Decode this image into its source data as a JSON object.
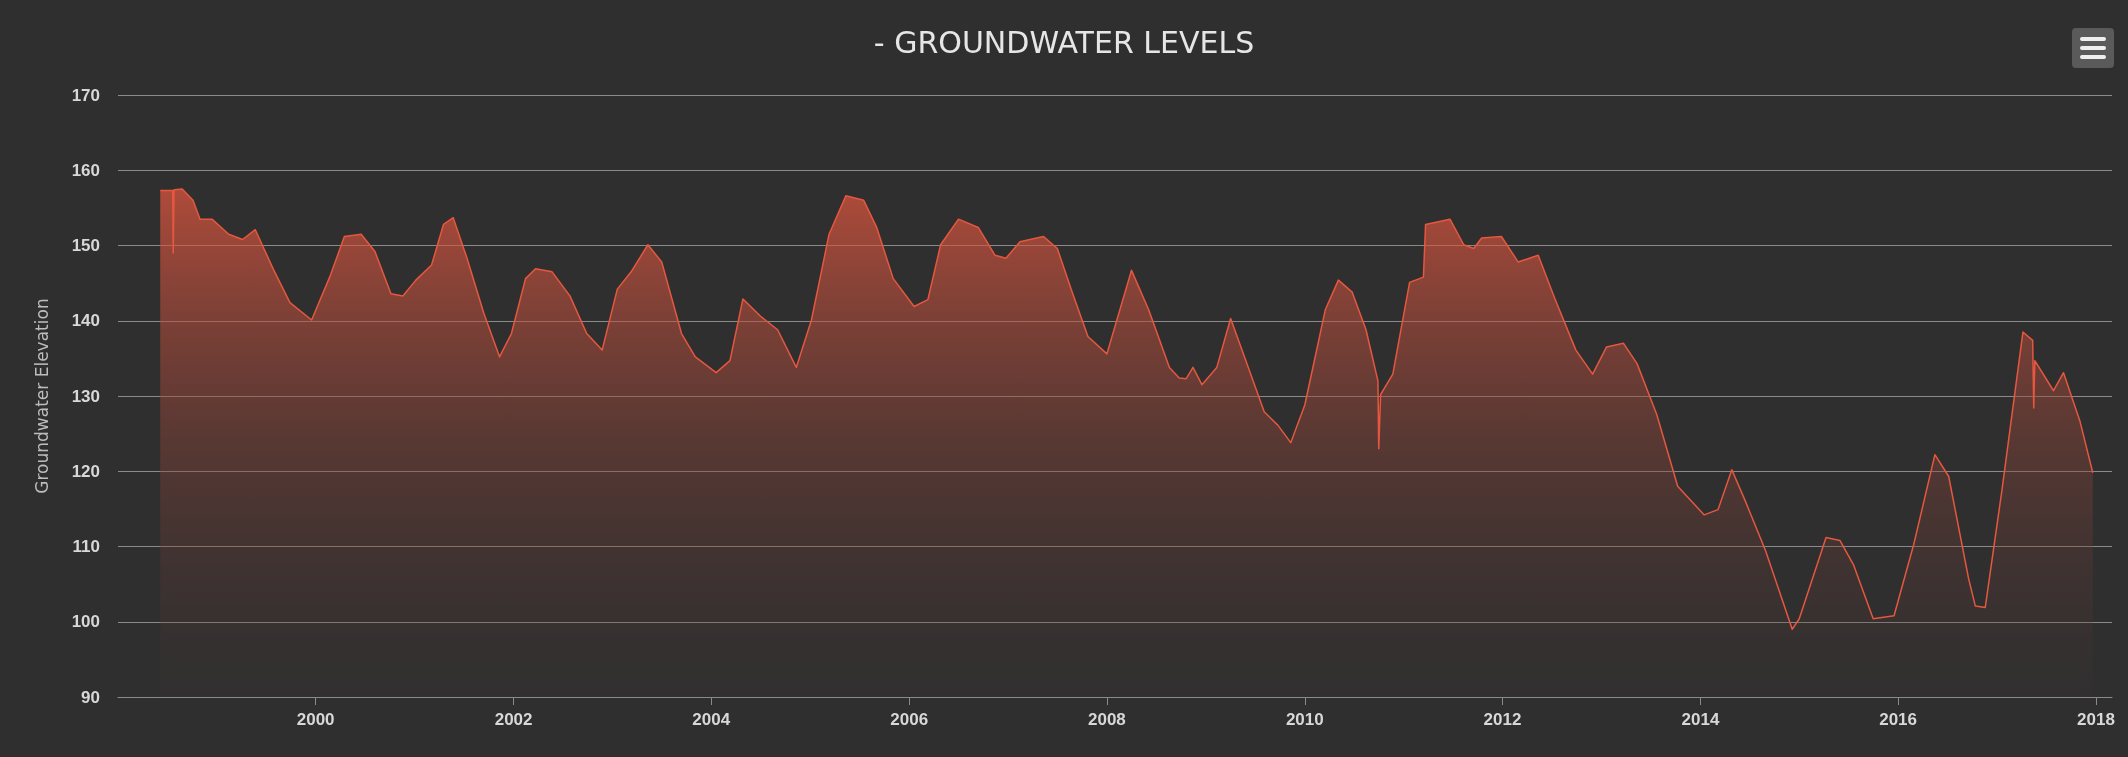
{
  "chart_data": {
    "type": "area",
    "title": "- GROUNDWATER LEVELS",
    "ylabel": "Groundwater Elevation",
    "x": [
      "1998-06-06",
      "1998-07-13",
      "1998-07-22",
      "1998-07-24",
      "1998-07-27",
      "1998-08-26",
      "1998-10-05",
      "1998-10-31",
      "1998-12-14",
      "1999-02-14",
      "1999-04-06",
      "1999-05-23",
      "1999-07-28",
      "1999-09-28",
      "1999-12-17",
      "2000-02-24",
      "2000-04-16",
      "2000-06-17",
      "2000-08-07",
      "2000-10-05",
      "2000-11-18",
      "2001-01-05",
      "2001-03-04",
      "2001-04-17",
      "2001-05-23",
      "2001-07-13",
      "2001-09-13",
      "2001-11-10",
      "2001-12-24",
      "2002-02-14",
      "2002-03-23",
      "2002-05-23",
      "2002-07-28",
      "2002-09-28",
      "2002-11-24",
      "2003-01-19",
      "2003-03-11",
      "2003-05-12",
      "2003-07-02",
      "2003-09-13",
      "2003-11-03",
      "2004-01-19",
      "2004-03-10",
      "2004-04-27",
      "2004-07-01",
      "2004-09-02",
      "2004-11-10",
      "2005-01-05",
      "2005-03-11",
      "2005-05-12",
      "2005-07-17",
      "2005-09-03",
      "2005-11-03",
      "2006-01-19",
      "2006-03-11",
      "2006-04-27",
      "2006-07-02",
      "2006-09-13",
      "2006-11-14",
      "2006-12-24",
      "2007-02-14",
      "2007-05-12",
      "2007-07-02",
      "2007-08-26",
      "2007-10-23",
      "2008-01-01",
      "2008-04-01",
      "2008-06-03",
      "2008-08-19",
      "2008-09-24",
      "2008-10-20",
      "2008-11-14",
      "2008-12-17",
      "2009-02-10",
      "2009-04-02",
      "2009-05-19",
      "2009-08-04",
      "2009-09-24",
      "2009-11-10",
      "2010-01-01",
      "2010-03-18",
      "2010-05-05",
      "2010-06-25",
      "2010-08-15",
      "2010-09-28",
      "2010-10-01",
      "2010-10-08",
      "2010-11-22",
      "2011-01-23",
      "2011-03-15",
      "2011-03-23",
      "2011-06-21",
      "2011-08-11",
      "2011-09-17",
      "2011-10-16",
      "2011-12-28",
      "2012-02-28",
      "2012-05-12",
      "2012-07-13",
      "2012-09-28",
      "2012-11-29",
      "2013-01-19",
      "2013-03-23",
      "2013-05-12",
      "2013-07-24",
      "2013-10-09",
      "2013-11-24",
      "2014-01-15",
      "2014-03-07",
      "2014-04-27",
      "2014-06-14",
      "2014-08-30",
      "2014-12-06",
      "2015-01-01",
      "2015-04-10",
      "2015-05-31",
      "2015-07-20",
      "2015-10-01",
      "2015-12-17",
      "2016-02-28",
      "2016-05-16",
      "2016-07-06",
      "2016-09-17",
      "2016-10-12",
      "2016-11-18",
      "2017-01-19",
      "2017-04-06",
      "2017-05-12",
      "2017-05-16",
      "2017-05-20",
      "2017-07-28",
      "2017-09-03",
      "2017-11-03",
      "2017-12-20"
    ],
    "series": [
      {
        "color": "#e5573f",
        "values": [
          157.3,
          157.3,
          157.3,
          149,
          157.4,
          157.5,
          156,
          153.5,
          153.5,
          151.5,
          150.8,
          152.1,
          146.9,
          142.4,
          140.1,
          146,
          151.2,
          151.5,
          149.2,
          143.6,
          143.3,
          145.4,
          147.4,
          152.8,
          153.7,
          148.3,
          141,
          135.2,
          138.3,
          145.6,
          146.9,
          146.5,
          143.3,
          138.3,
          136.1,
          144.2,
          146.5,
          150.1,
          147.8,
          138.3,
          135.2,
          133.1,
          134.7,
          142.9,
          140.6,
          138.8,
          133.8,
          140.1,
          151.5,
          156.6,
          156,
          152.4,
          145.6,
          141.9,
          142.8,
          150.1,
          153.5,
          152.4,
          148.7,
          148.3,
          150.5,
          151.2,
          149.6,
          143.8,
          137.9,
          135.6,
          146.7,
          141.5,
          133.8,
          132.4,
          132.3,
          133.8,
          131.5,
          133.8,
          140.3,
          135.6,
          127.9,
          126.1,
          123.8,
          128.8,
          141.5,
          145.4,
          143.8,
          138.8,
          132,
          123,
          130.2,
          132.9,
          145.1,
          145.8,
          152.8,
          153.5,
          150.1,
          149.6,
          151,
          151.2,
          147.8,
          148.7,
          142.9,
          136.1,
          132.9,
          136.5,
          137,
          134.3,
          127.5,
          118,
          116.2,
          114.2,
          114.9,
          120.2,
          116.2,
          109.4,
          99,
          100.4,
          111.2,
          110.8,
          107.6,
          100.4,
          100.8,
          110.3,
          122.2,
          119.3,
          105.8,
          102.1,
          101.9,
          117.6,
          138.5,
          137.4,
          128.4,
          134.7,
          130.7,
          133.1,
          126.6,
          119.8
        ]
      }
    ],
    "xlim": [
      "1998-01-01",
      "2018-03-01"
    ],
    "xticks": [
      "2000",
      "2002",
      "2004",
      "2006",
      "2008",
      "2010",
      "2012",
      "2014",
      "2016",
      "2018"
    ],
    "ylim": [
      90,
      170
    ],
    "yticks": [
      90,
      100,
      110,
      120,
      130,
      140,
      150,
      160,
      170
    ],
    "grid": "y",
    "marker": "none",
    "line_style": "solid"
  }
}
